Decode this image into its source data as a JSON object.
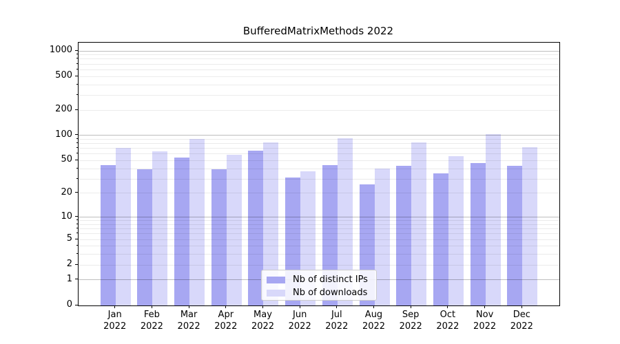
{
  "chart_data": {
    "type": "bar",
    "title": "BufferedMatrixMethods 2022",
    "categories": [
      "Jan",
      "Feb",
      "Mar",
      "Apr",
      "May",
      "Jun",
      "Jul",
      "Aug",
      "Sep",
      "Oct",
      "Nov",
      "Dec"
    ],
    "year_label": "2022",
    "series": [
      {
        "name": "Nb of distinct IPs",
        "color": "#a7a7f2",
        "values": [
          44,
          39,
          54,
          39,
          66,
          31,
          44,
          26,
          43,
          35,
          47,
          43
        ]
      },
      {
        "name": "Nb of downloads",
        "color": "#d8d8fa",
        "values": [
          71,
          65,
          91,
          59,
          82,
          37,
          93,
          40,
          83,
          57,
          104,
          72
        ]
      }
    ],
    "y_axis": {
      "scale": "log1p",
      "tick_labels": [
        "0",
        "1",
        "2",
        "5",
        "10",
        "20",
        "50",
        "100",
        "200",
        "500",
        "1000"
      ],
      "tick_values": [
        0,
        1,
        2,
        5,
        10,
        20,
        50,
        100,
        200,
        500,
        1000
      ],
      "major_gridline_values": [
        1,
        10,
        100,
        1000
      ],
      "ylim": [
        0,
        1230
      ],
      "grid": true
    },
    "legend": {
      "position": "lower-center"
    }
  }
}
